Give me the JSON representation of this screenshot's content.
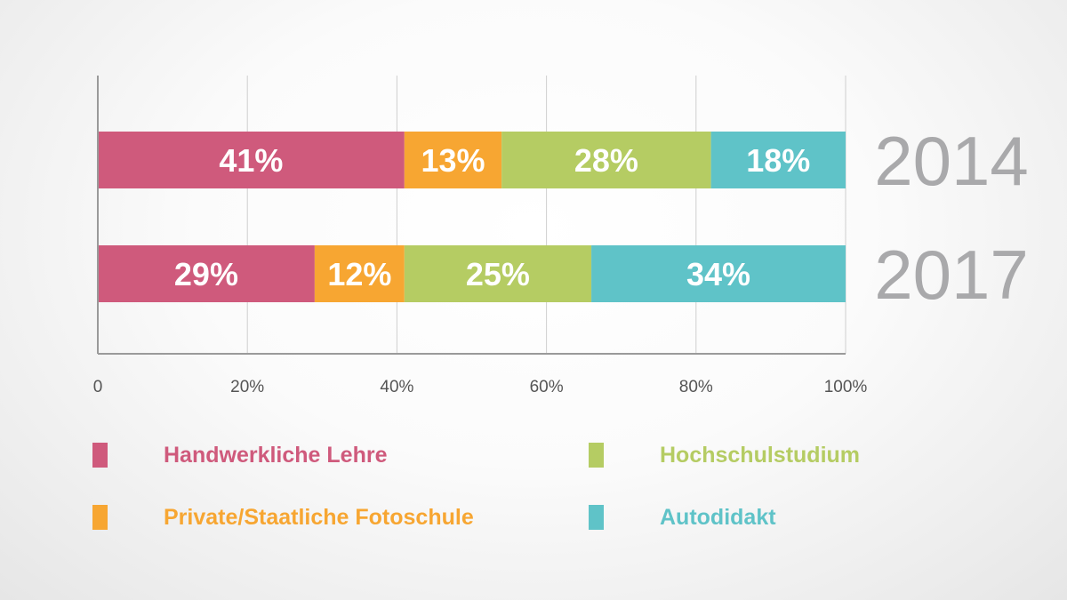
{
  "colors": {
    "handwerk": "#cf5a7c",
    "fotoschule": "#f7a632",
    "hochschule": "#b5cc63",
    "autodidakt": "#5fc3c8",
    "axis": "#9a9a9a",
    "grid": "#cfcfcf",
    "year": "#a9a9ab"
  },
  "legend": {
    "items": [
      {
        "label": "Handwerkliche Lehre",
        "color": "#cf5a7c"
      },
      {
        "label": "Hochschulstudium",
        "color": "#b5cc63"
      },
      {
        "label": "Private/Staatliche Fotoschule",
        "color": "#f7a632"
      },
      {
        "label": "Autodidakt",
        "color": "#5fc3c8"
      }
    ]
  },
  "chart_data": {
    "type": "bar",
    "orientation": "horizontal",
    "stacked": true,
    "categories": [
      "2014",
      "2017"
    ],
    "series": [
      {
        "name": "Handwerkliche Lehre",
        "values": [
          41,
          29
        ],
        "labels": [
          "41%",
          "29%"
        ],
        "color": "#cf5a7c"
      },
      {
        "name": "Private/Staatliche Fotoschule",
        "values": [
          13,
          12
        ],
        "labels": [
          "13%",
          "12%"
        ],
        "color": "#f7a632"
      },
      {
        "name": "Hochschulstudium",
        "values": [
          28,
          25
        ],
        "labels": [
          "28%",
          "25%"
        ],
        "color": "#b5cc63"
      },
      {
        "name": "Autodidakt",
        "values": [
          18,
          34
        ],
        "labels": [
          "18%",
          "34%"
        ],
        "color": "#5fc3c8"
      }
    ],
    "xlim": [
      0,
      100
    ],
    "xticks": [
      0,
      20,
      40,
      60,
      80,
      100
    ],
    "xtick_labels": [
      "0",
      "20%",
      "40%",
      "60%",
      "80%",
      "100%"
    ],
    "grid": true,
    "legend_position": "bottom",
    "title": "",
    "xlabel": "",
    "ylabel": ""
  }
}
